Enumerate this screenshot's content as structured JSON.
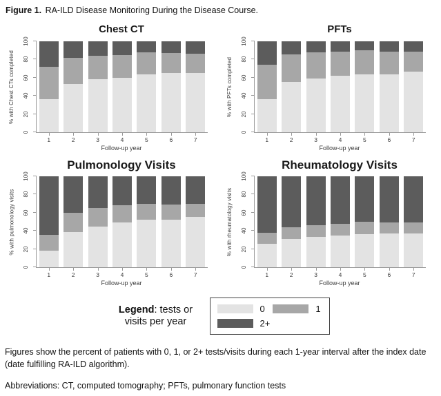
{
  "figure_title": {
    "label": "Figure 1.",
    "text": " RA-ILD Disease Monitoring During the Disease Course."
  },
  "legend": {
    "label_bold": "Legend",
    "label_rest": ": tests or visits per year",
    "entries": [
      {
        "label": "0",
        "color": "#e3e3e3"
      },
      {
        "label": "1",
        "color": "#a7a7a7"
      },
      {
        "label": "2+",
        "color": "#5c5c5c"
      }
    ]
  },
  "captions": {
    "body": "Figures show the percent of patients with 0, 1, or 2+ tests/visits during each 1-year interval after the index date (date fulfilling RA-ILD algorithm).",
    "abbreviations": "Abbreviations: CT, computed tomography; PFTs, pulmonary function tests"
  },
  "chart_data": [
    {
      "type": "bar",
      "stacked": true,
      "title": "Chest CT",
      "ylabel": "% with Chest CTs completed",
      "xlabel": "Follow-up year",
      "ylim": [
        0,
        100
      ],
      "yticks": [
        0,
        20,
        40,
        60,
        80,
        100
      ],
      "grid": false,
      "categories": [
        "1",
        "2",
        "3",
        "4",
        "5",
        "6",
        "7"
      ],
      "series": [
        {
          "name": "0",
          "color": "#e3e3e3",
          "values": [
            36,
            53,
            58,
            60,
            64,
            65,
            65
          ]
        },
        {
          "name": "1",
          "color": "#a7a7a7",
          "values": [
            36,
            29,
            26,
            25,
            24,
            22,
            21
          ]
        },
        {
          "name": "2+",
          "color": "#5c5c5c",
          "values": [
            28,
            18,
            16,
            15,
            12,
            13,
            14
          ]
        }
      ]
    },
    {
      "type": "bar",
      "stacked": true,
      "title": "PFTs",
      "ylabel": "% with PFTs completed",
      "xlabel": "Follow-up year",
      "ylim": [
        0,
        100
      ],
      "yticks": [
        0,
        20,
        40,
        60,
        80,
        100
      ],
      "grid": false,
      "categories": [
        "1",
        "2",
        "3",
        "4",
        "5",
        "6",
        "7"
      ],
      "series": [
        {
          "name": "0",
          "color": "#e3e3e3",
          "values": [
            36,
            55,
            59,
            62,
            64,
            64,
            67
          ]
        },
        {
          "name": "1",
          "color": "#a7a7a7",
          "values": [
            38,
            31,
            29,
            27,
            26,
            25,
            22
          ]
        },
        {
          "name": "2+",
          "color": "#5c5c5c",
          "values": [
            26,
            14,
            12,
            11,
            10,
            11,
            11
          ]
        }
      ]
    },
    {
      "type": "bar",
      "stacked": true,
      "title": "Pulmonology Visits",
      "ylabel": "% with pulmonology visits",
      "xlabel": "Follow-up year",
      "ylim": [
        0,
        100
      ],
      "yticks": [
        0,
        20,
        40,
        60,
        80,
        100
      ],
      "grid": false,
      "categories": [
        "1",
        "2",
        "3",
        "4",
        "5",
        "6",
        "7"
      ],
      "series": [
        {
          "name": "0",
          "color": "#e3e3e3",
          "values": [
            18,
            39,
            45,
            49,
            52,
            52,
            55
          ]
        },
        {
          "name": "1",
          "color": "#a7a7a7",
          "values": [
            18,
            21,
            20,
            19,
            18,
            17,
            15
          ]
        },
        {
          "name": "2+",
          "color": "#5c5c5c",
          "values": [
            64,
            40,
            35,
            32,
            30,
            31,
            30
          ]
        }
      ]
    },
    {
      "type": "bar",
      "stacked": true,
      "title": "Rheumatology Visits",
      "ylabel": "% with rheumatology visits",
      "xlabel": "Follow-up year",
      "ylim": [
        0,
        100
      ],
      "yticks": [
        0,
        20,
        40,
        60,
        80,
        100
      ],
      "grid": false,
      "categories": [
        "1",
        "2",
        "3",
        "4",
        "5",
        "6",
        "7"
      ],
      "series": [
        {
          "name": "0",
          "color": "#e3e3e3",
          "values": [
            26,
            31,
            33,
            35,
            36,
            37,
            37
          ]
        },
        {
          "name": "1",
          "color": "#a7a7a7",
          "values": [
            12,
            13,
            13,
            13,
            14,
            12,
            12
          ]
        },
        {
          "name": "2+",
          "color": "#5c5c5c",
          "values": [
            62,
            56,
            54,
            52,
            50,
            51,
            51
          ]
        }
      ]
    }
  ]
}
